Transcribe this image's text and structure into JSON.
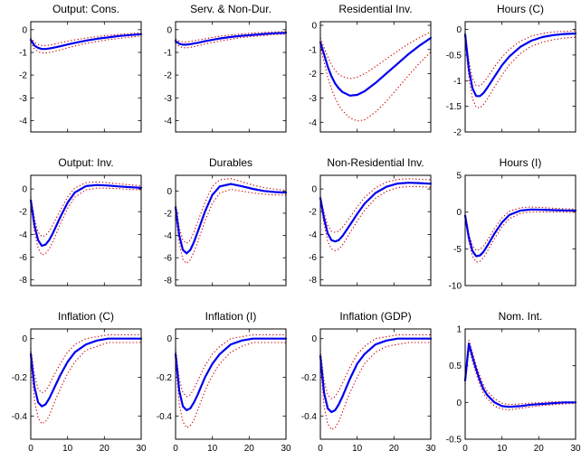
{
  "figure": {
    "background": "#ffffff"
  },
  "chart_data": {
    "type": "line",
    "layout": {
      "rows": 3,
      "cols": 4
    },
    "colors": {
      "median_line": "#0000ee",
      "band_line": "#cc0000"
    },
    "xlim": [
      0,
      30
    ],
    "xticks": [
      0,
      10,
      20,
      30
    ],
    "x": [
      0,
      1,
      2,
      3,
      4,
      5,
      6,
      8,
      10,
      12,
      15,
      18,
      21,
      24,
      27,
      30
    ],
    "charts": [
      {
        "title": "Output: Cons.",
        "ylim": [
          -4.5,
          0.35
        ],
        "yticks": [
          0,
          -1,
          -2,
          -3,
          -4
        ],
        "median": [
          -0.45,
          -0.7,
          -0.8,
          -0.85,
          -0.85,
          -0.83,
          -0.8,
          -0.73,
          -0.65,
          -0.58,
          -0.48,
          -0.4,
          -0.34,
          -0.28,
          -0.24,
          -0.2
        ],
        "upper": [
          -0.35,
          -0.56,
          -0.65,
          -0.7,
          -0.7,
          -0.68,
          -0.65,
          -0.58,
          -0.51,
          -0.45,
          -0.37,
          -0.3,
          -0.25,
          -0.21,
          -0.17,
          -0.14
        ],
        "lower": [
          -0.55,
          -0.84,
          -0.97,
          -1.02,
          -1.03,
          -1.0,
          -0.97,
          -0.89,
          -0.8,
          -0.72,
          -0.61,
          -0.52,
          -0.44,
          -0.38,
          -0.33,
          -0.28
        ]
      },
      {
        "title": "Serv. & Non-Dur.",
        "ylim": [
          -4.5,
          0.35
        ],
        "yticks": [
          0,
          -1,
          -2,
          -3,
          -4
        ],
        "median": [
          -0.5,
          -0.62,
          -0.66,
          -0.66,
          -0.64,
          -0.61,
          -0.58,
          -0.51,
          -0.45,
          -0.39,
          -0.32,
          -0.27,
          -0.23,
          -0.19,
          -0.16,
          -0.14
        ],
        "upper": [
          -0.41,
          -0.51,
          -0.54,
          -0.54,
          -0.52,
          -0.49,
          -0.46,
          -0.4,
          -0.34,
          -0.29,
          -0.23,
          -0.19,
          -0.15,
          -0.12,
          -0.1,
          -0.08
        ],
        "lower": [
          -0.59,
          -0.74,
          -0.79,
          -0.8,
          -0.78,
          -0.75,
          -0.71,
          -0.63,
          -0.56,
          -0.5,
          -0.42,
          -0.35,
          -0.3,
          -0.26,
          -0.22,
          -0.19
        ]
      },
      {
        "title": "Residential Inv.",
        "ylim": [
          -4.4,
          0.15
        ],
        "yticks": [
          0,
          -1,
          -2,
          -3,
          -4
        ],
        "median": [
          -0.7,
          -1.2,
          -1.7,
          -2.1,
          -2.4,
          -2.6,
          -2.75,
          -2.9,
          -2.87,
          -2.72,
          -2.38,
          -1.98,
          -1.58,
          -1.18,
          -0.83,
          -0.52
        ],
        "upper": [
          -0.52,
          -0.92,
          -1.3,
          -1.62,
          -1.86,
          -2.02,
          -2.12,
          -2.2,
          -2.14,
          -2.0,
          -1.7,
          -1.38,
          -1.06,
          -0.76,
          -0.5,
          -0.27
        ],
        "lower": [
          -0.88,
          -1.52,
          -2.12,
          -2.62,
          -3.0,
          -3.3,
          -3.52,
          -3.82,
          -3.95,
          -3.9,
          -3.58,
          -3.12,
          -2.6,
          -2.05,
          -1.55,
          -1.1
        ]
      },
      {
        "title": "Hours (C)",
        "ylim": [
          -2.0,
          0.15
        ],
        "yticks": [
          0,
          -0.5,
          -1,
          -1.5,
          -2
        ],
        "median": [
          -0.1,
          -0.78,
          -1.15,
          -1.3,
          -1.3,
          -1.24,
          -1.14,
          -0.92,
          -0.7,
          -0.53,
          -0.34,
          -0.22,
          -0.15,
          -0.11,
          -0.09,
          -0.08
        ],
        "upper": [
          -0.06,
          -0.62,
          -0.95,
          -1.1,
          -1.1,
          -1.04,
          -0.94,
          -0.73,
          -0.54,
          -0.39,
          -0.23,
          -0.13,
          -0.08,
          -0.05,
          -0.04,
          -0.03
        ],
        "lower": [
          -0.14,
          -0.94,
          -1.35,
          -1.52,
          -1.53,
          -1.46,
          -1.36,
          -1.12,
          -0.89,
          -0.69,
          -0.47,
          -0.33,
          -0.25,
          -0.2,
          -0.17,
          -0.15
        ]
      },
      {
        "title": "Output: Inv.",
        "ylim": [
          -8.5,
          1.2
        ],
        "yticks": [
          0,
          -2,
          -4,
          -6,
          -8
        ],
        "median": [
          -1.0,
          -3.2,
          -4.5,
          -5.0,
          -4.9,
          -4.5,
          -3.9,
          -2.5,
          -1.2,
          -0.3,
          0.25,
          0.35,
          0.3,
          0.22,
          0.16,
          0.1
        ],
        "upper": [
          -0.7,
          -2.6,
          -3.8,
          -4.2,
          -4.1,
          -3.72,
          -3.15,
          -1.9,
          -0.7,
          0.1,
          0.55,
          0.62,
          0.55,
          0.45,
          0.36,
          0.28
        ],
        "lower": [
          -1.3,
          -3.8,
          -5.2,
          -5.8,
          -5.7,
          -5.28,
          -4.65,
          -3.1,
          -1.72,
          -0.72,
          -0.08,
          0.08,
          0.06,
          0.02,
          -0.03,
          -0.07
        ]
      },
      {
        "title": "Durables",
        "ylim": [
          -8.5,
          1.4
        ],
        "yticks": [
          0,
          -2,
          -4,
          -6,
          -8
        ],
        "median": [
          -1.5,
          -4.0,
          -5.3,
          -5.6,
          -5.3,
          -4.6,
          -3.7,
          -1.85,
          -0.35,
          0.4,
          0.62,
          0.42,
          0.18,
          0.0,
          -0.1,
          -0.15
        ],
        "upper": [
          -1.05,
          -3.3,
          -4.45,
          -4.7,
          -4.4,
          -3.7,
          -2.8,
          -1.0,
          0.4,
          1.0,
          1.1,
          0.82,
          0.52,
          0.3,
          0.15,
          0.05
        ],
        "lower": [
          -1.95,
          -4.7,
          -6.15,
          -6.5,
          -6.2,
          -5.5,
          -4.6,
          -2.7,
          -1.1,
          -0.2,
          0.14,
          -0.02,
          -0.18,
          -0.3,
          -0.36,
          -0.38
        ]
      },
      {
        "title": "Non-Residential Inv.",
        "ylim": [
          -8.5,
          1.2
        ],
        "yticks": [
          0,
          -2,
          -4,
          -6,
          -8
        ],
        "median": [
          -0.8,
          -2.6,
          -3.9,
          -4.5,
          -4.62,
          -4.5,
          -4.15,
          -3.2,
          -2.2,
          -1.3,
          -0.35,
          0.2,
          0.48,
          0.55,
          0.52,
          0.46
        ],
        "upper": [
          -0.6,
          -2.1,
          -3.2,
          -3.72,
          -3.82,
          -3.7,
          -3.38,
          -2.5,
          -1.58,
          -0.75,
          0.1,
          0.6,
          0.84,
          0.9,
          0.86,
          0.8
        ],
        "lower": [
          -1.0,
          -3.1,
          -4.6,
          -5.28,
          -5.42,
          -5.3,
          -4.92,
          -3.9,
          -2.82,
          -1.88,
          -0.82,
          -0.2,
          0.12,
          0.22,
          0.2,
          0.14
        ]
      },
      {
        "title": "Hours (I)",
        "ylim": [
          -10,
          5
        ],
        "yticks": [
          5,
          0,
          -5,
          -10
        ],
        "median": [
          -0.5,
          -3.5,
          -5.3,
          -6.0,
          -5.9,
          -5.4,
          -4.6,
          -2.9,
          -1.4,
          -0.4,
          0.2,
          0.35,
          0.32,
          0.27,
          0.22,
          0.2
        ],
        "upper": [
          -0.3,
          -3.0,
          -4.6,
          -5.2,
          -5.1,
          -4.6,
          -3.85,
          -2.2,
          -0.8,
          0.1,
          0.58,
          0.7,
          0.62,
          0.52,
          0.45,
          0.4
        ],
        "lower": [
          -0.7,
          -4.0,
          -6.0,
          -6.8,
          -6.7,
          -6.2,
          -5.35,
          -3.6,
          -2.0,
          -0.92,
          -0.18,
          0.02,
          0.02,
          0.0,
          -0.02,
          -0.04
        ]
      },
      {
        "title": "Inflation (C)",
        "ylim": [
          -0.52,
          0.05
        ],
        "yticks": [
          0,
          -0.2,
          -0.4
        ],
        "median": [
          -0.08,
          -0.25,
          -0.33,
          -0.35,
          -0.34,
          -0.31,
          -0.27,
          -0.19,
          -0.12,
          -0.07,
          -0.03,
          -0.01,
          0.0,
          0.0,
          0.0,
          0.0
        ],
        "upper": [
          -0.05,
          -0.19,
          -0.26,
          -0.28,
          -0.27,
          -0.24,
          -0.2,
          -0.13,
          -0.07,
          -0.03,
          0.0,
          0.01,
          0.02,
          0.02,
          0.02,
          0.02
        ],
        "lower": [
          -0.11,
          -0.32,
          -0.41,
          -0.44,
          -0.43,
          -0.4,
          -0.35,
          -0.26,
          -0.18,
          -0.12,
          -0.06,
          -0.04,
          -0.02,
          -0.02,
          -0.02,
          -0.02
        ]
      },
      {
        "title": "Inflation (I)",
        "ylim": [
          -0.52,
          0.05
        ],
        "yticks": [
          0,
          -0.2,
          -0.4
        ],
        "median": [
          -0.08,
          -0.27,
          -0.35,
          -0.37,
          -0.36,
          -0.33,
          -0.29,
          -0.2,
          -0.13,
          -0.08,
          -0.03,
          -0.01,
          0.0,
          0.0,
          0.0,
          0.0
        ],
        "upper": [
          -0.05,
          -0.21,
          -0.28,
          -0.3,
          -0.29,
          -0.26,
          -0.22,
          -0.14,
          -0.08,
          -0.04,
          0.0,
          0.01,
          0.02,
          0.02,
          0.02,
          0.02
        ],
        "lower": [
          -0.11,
          -0.34,
          -0.43,
          -0.46,
          -0.45,
          -0.42,
          -0.37,
          -0.27,
          -0.19,
          -0.13,
          -0.07,
          -0.04,
          -0.02,
          -0.02,
          -0.02,
          -0.02
        ]
      },
      {
        "title": "Inflation (GDP)",
        "ylim": [
          -0.52,
          0.05
        ],
        "yticks": [
          0,
          -0.2,
          -0.4
        ],
        "median": [
          -0.09,
          -0.28,
          -0.36,
          -0.38,
          -0.37,
          -0.34,
          -0.3,
          -0.21,
          -0.13,
          -0.08,
          -0.03,
          -0.01,
          0.0,
          0.0,
          0.0,
          0.0
        ],
        "upper": [
          -0.06,
          -0.22,
          -0.29,
          -0.31,
          -0.3,
          -0.27,
          -0.23,
          -0.15,
          -0.08,
          -0.04,
          0.0,
          0.01,
          0.02,
          0.02,
          0.02,
          0.02
        ],
        "lower": [
          -0.12,
          -0.35,
          -0.44,
          -0.47,
          -0.46,
          -0.43,
          -0.38,
          -0.28,
          -0.2,
          -0.13,
          -0.07,
          -0.04,
          -0.03,
          -0.02,
          -0.02,
          -0.02
        ]
      },
      {
        "title": "Nom. Int.",
        "ylim": [
          -0.5,
          1.0
        ],
        "yticks": [
          1,
          0.5,
          0,
          -0.5
        ],
        "median": [
          0.3,
          0.8,
          0.62,
          0.45,
          0.3,
          0.18,
          0.1,
          0.0,
          -0.05,
          -0.06,
          -0.05,
          -0.03,
          -0.02,
          -0.01,
          0.0,
          0.0
        ],
        "upper": [
          0.35,
          0.85,
          0.68,
          0.51,
          0.36,
          0.24,
          0.15,
          0.05,
          -0.01,
          -0.03,
          -0.02,
          -0.01,
          0.0,
          0.01,
          0.01,
          0.01
        ],
        "lower": [
          0.25,
          0.75,
          0.56,
          0.39,
          0.24,
          0.12,
          0.05,
          -0.05,
          -0.09,
          -0.1,
          -0.08,
          -0.06,
          -0.04,
          -0.03,
          -0.02,
          -0.01
        ]
      }
    ]
  }
}
